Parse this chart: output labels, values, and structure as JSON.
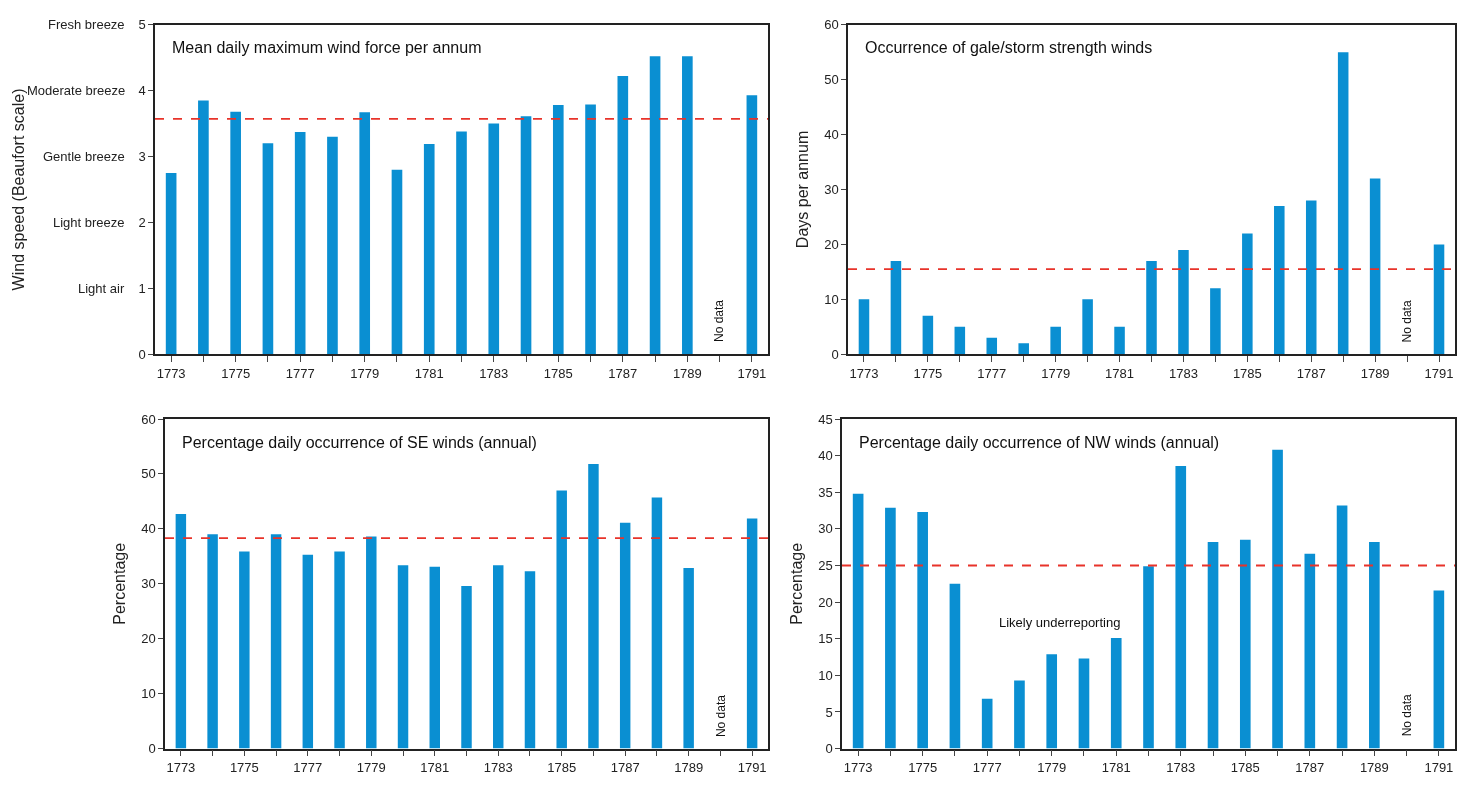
{
  "chart_data": [
    {
      "type": "bar",
      "ylabel": "Wind speed (Beaufort scale)",
      "categories": [
        "1773",
        null,
        "1775",
        null,
        "1777",
        null,
        "1779",
        null,
        "1781",
        null,
        "1783",
        null,
        "1785",
        null,
        "1787",
        null,
        "1789",
        null,
        "1791"
      ],
      "values": [
        2.75,
        3.85,
        3.68,
        3.2,
        3.37,
        3.3,
        3.67,
        2.8,
        3.19,
        3.38,
        3.5,
        3.61,
        3.78,
        3.79,
        4.22,
        4.52,
        4.52,
        null,
        3.93
      ],
      "color": "#0a8fd2",
      "ylim": [
        0,
        5
      ],
      "yticks": [
        0,
        1,
        2,
        3,
        4,
        5
      ],
      "ref_lines": [
        {
          "axis": "y",
          "value": 3.57,
          "color": "#e8332a",
          "line_style": "dashed"
        }
      ],
      "annotations": [
        "Mean daily maximum wind force per annum",
        "No data",
        "Light air",
        "Light breeze",
        "Gentle breeze",
        "Moderate breeze",
        "Fresh breeze"
      ]
    },
    {
      "type": "bar",
      "ylabel": "Days per annum",
      "categories": [
        "1773",
        null,
        "1775",
        null,
        "1777",
        null,
        "1779",
        null,
        "1781",
        null,
        "1783",
        null,
        "1785",
        null,
        "1787",
        null,
        "1789",
        null,
        "1791"
      ],
      "values": [
        10,
        17,
        7,
        5,
        3,
        2,
        5,
        10,
        5,
        17,
        19,
        12,
        22,
        27,
        28,
        55,
        32,
        null,
        20
      ],
      "color": "#0a8fd2",
      "ylim": [
        0,
        60
      ],
      "yticks": [
        0,
        10,
        20,
        30,
        40,
        50,
        60
      ],
      "ref_lines": [
        {
          "axis": "y",
          "value": 15.5,
          "color": "#e8332a",
          "line_style": "dashed"
        }
      ],
      "annotations": [
        "Occurrence of gale/storm strength winds",
        "No data"
      ]
    },
    {
      "type": "bar",
      "ylabel": "Percentage",
      "categories": [
        "1773",
        null,
        "1775",
        null,
        "1777",
        null,
        "1779",
        null,
        "1781",
        null,
        "1783",
        null,
        "1785",
        null,
        "1787",
        null,
        "1789",
        null,
        "1791"
      ],
      "values": [
        42.7,
        39,
        35.9,
        39,
        35.3,
        35.9,
        38.6,
        33.4,
        33.1,
        29.6,
        33.4,
        32.3,
        47,
        51.8,
        41.1,
        45.7,
        32.9,
        null,
        41.9
      ],
      "color": "#0a8fd2",
      "ylim": [
        0,
        60
      ],
      "yticks": [
        0,
        10,
        20,
        30,
        40,
        50,
        60
      ],
      "ref_lines": [
        {
          "axis": "y",
          "value": 38.3,
          "color": "#e8332a",
          "line_style": "dashed"
        }
      ],
      "annotations": [
        "Percentage daily occurrence of SE winds (annual)",
        "No data"
      ]
    },
    {
      "type": "bar",
      "ylabel": "Percentage",
      "categories": [
        "1773",
        null,
        "1775",
        null,
        "1777",
        null,
        "1779",
        null,
        "1781",
        null,
        "1783",
        null,
        "1785",
        null,
        "1787",
        null,
        "1789",
        null,
        "1791"
      ],
      "values": [
        34.8,
        32.9,
        32.3,
        22.5,
        6.8,
        9.3,
        12.9,
        12.3,
        15.1,
        24.9,
        38.6,
        28.2,
        28.5,
        40.8,
        26.6,
        33.2,
        28.2,
        null,
        21.6
      ],
      "color": "#0a8fd2",
      "ylim": [
        0,
        45
      ],
      "yticks": [
        0,
        5,
        10,
        15,
        20,
        25,
        30,
        35,
        40,
        45
      ],
      "ref_lines": [
        {
          "axis": "y",
          "value": 25,
          "color": "#e8332a",
          "line_style": "dashed"
        }
      ],
      "annotations": [
        "Percentage daily occurrence of NW winds (annual)",
        "No data",
        "Likely underreporting"
      ]
    }
  ]
}
